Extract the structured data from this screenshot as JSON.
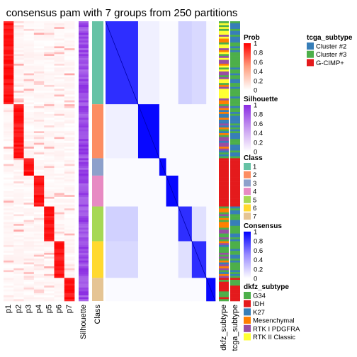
{
  "chart_data": {
    "type": "heatmap",
    "title": "consensus pam with 7 groups from 250 partitions",
    "groups": [
      "1",
      "2",
      "3",
      "4",
      "5",
      "6",
      "7"
    ],
    "group_sizes": [
      43,
      28,
      9,
      16,
      18,
      19,
      12
    ],
    "prob_columns": [
      "p1",
      "p2",
      "p3",
      "p4",
      "p5",
      "p6",
      "p7"
    ],
    "silhouette_label": "Silhouette",
    "class_label": "Class",
    "dkfz_label": "dkfz_subtype",
    "tcga_label": "tcga_subtype",
    "class_colors": [
      "#66C2A5",
      "#FC8D62",
      "#8DA0CB",
      "#E78AC3",
      "#A6D854",
      "#FFD92F",
      "#E5C494"
    ],
    "legends": {
      "prob": {
        "title": "Prob",
        "ticks": [
          "1",
          "0.8",
          "0.6",
          "0.4",
          "0.2",
          "0"
        ],
        "colors": [
          "#FF0000",
          "#FFFFFF"
        ]
      },
      "silhouette": {
        "title": "Silhouette",
        "ticks": [
          "1",
          "0.8",
          "0.6",
          "0.4",
          "0.2",
          "0"
        ],
        "colors": [
          "#8A2BE2",
          "#FFFFFF"
        ]
      },
      "class": {
        "title": "Class",
        "items": [
          "1",
          "2",
          "3",
          "4",
          "5",
          "6",
          "7"
        ]
      },
      "consensus": {
        "title": "Consensus",
        "ticks": [
          "1",
          "0.8",
          "0.6",
          "0.4",
          "0.2",
          "0"
        ],
        "colors": [
          "#0000FF",
          "#FFFFFF"
        ]
      },
      "dkfz_subtype": {
        "title": "dkfz_subtype",
        "items": [
          "G34",
          "IDH",
          "K27",
          "Mesenchymal",
          "RTK I PDGFRA",
          "RTK II Classic"
        ],
        "colors": [
          "#4DAF4A",
          "#E41A1C",
          "#377EB8",
          "#FF7F00",
          "#984EA3",
          "#FFFF33"
        ]
      },
      "tcga_subtype": {
        "title": "tcga_subtype",
        "items": [
          "Cluster #2",
          "Cluster #3",
          "G-CIMP+"
        ],
        "colors": [
          "#377EB8",
          "#4DAF4A",
          "#E41A1C"
        ]
      }
    }
  }
}
